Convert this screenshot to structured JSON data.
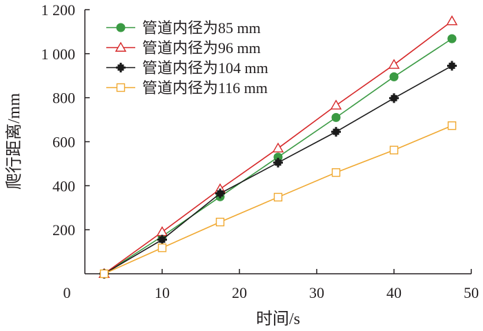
{
  "chart_data": {
    "type": "line",
    "xlabel": "时间/s",
    "ylabel": "爬行距离/mm",
    "xlim": [
      0,
      50
    ],
    "ylim": [
      0,
      1200
    ],
    "x_ticks": [
      0,
      10,
      20,
      30,
      40,
      50
    ],
    "y_ticks": [
      200,
      400,
      600,
      800,
      1000,
      1200
    ],
    "x_tick_labels": [
      "0",
      "10",
      "20",
      "30",
      "40",
      "50"
    ],
    "y_tick_labels": [
      "200",
      "400",
      "600",
      "800",
      "1 000",
      "1 200"
    ],
    "grid": false,
    "legend_position": "top-left",
    "x": [
      2.5,
      10,
      17.5,
      25,
      32.5,
      40,
      47.5
    ],
    "series": [
      {
        "name": "管道内径为85 mm",
        "color": "#3a9a43",
        "marker": "circle",
        "values": [
          0,
          170,
          350,
          530,
          710,
          895,
          1068
        ]
      },
      {
        "name": "管道内径为96 mm",
        "color": "#d62728",
        "marker": "triangle",
        "values": [
          0,
          190,
          385,
          570,
          765,
          950,
          1148
        ]
      },
      {
        "name": "管道内径为104 mm",
        "color": "#1a1a1a",
        "marker": "cross",
        "values": [
          0,
          155,
          365,
          505,
          645,
          798,
          945
        ]
      },
      {
        "name": "管道内径为116 mm",
        "color": "#f0a830",
        "marker": "square",
        "values": [
          0,
          118,
          235,
          348,
          460,
          562,
          673
        ]
      }
    ]
  }
}
